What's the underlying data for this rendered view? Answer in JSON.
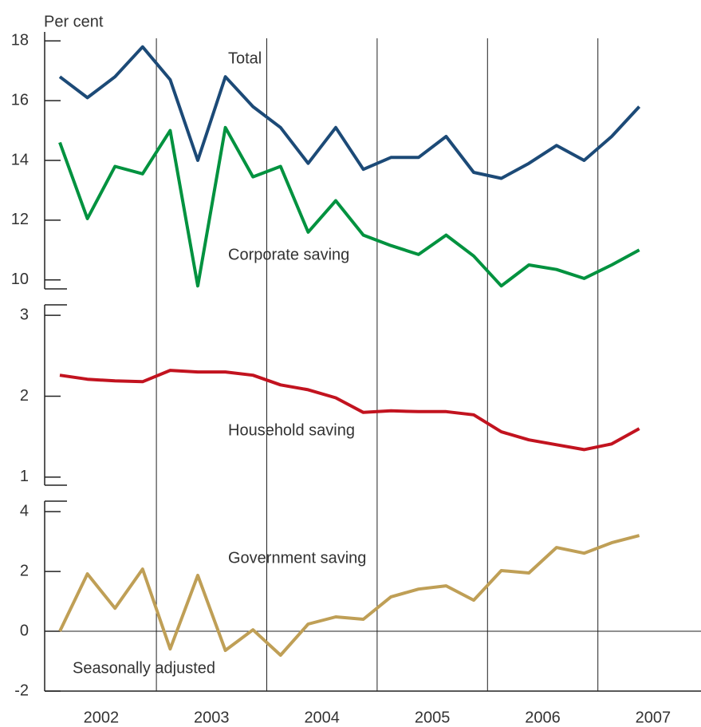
{
  "chart_data": [
    {
      "type": "line",
      "ylabel": "Per cent",
      "ylim": [
        9.7,
        18.3
      ],
      "yticks": [
        10,
        12,
        14,
        16,
        18
      ],
      "series": [
        {
          "name": "Total",
          "color": "#1c4a77",
          "values": [
            16.8,
            16.1,
            16.8,
            17.8,
            16.7,
            14.0,
            16.8,
            15.8,
            15.1,
            13.9,
            15.1,
            13.7,
            14.1,
            14.1,
            14.8,
            13.6,
            13.4,
            13.9,
            14.5,
            14.0,
            14.8,
            15.8
          ]
        },
        {
          "name": "Corporate saving",
          "color": "#00923f",
          "values": [
            14.6,
            12.05,
            13.8,
            13.55,
            15.0,
            9.8,
            15.1,
            13.45,
            13.8,
            11.6,
            12.65,
            11.5,
            11.15,
            10.85,
            11.5,
            10.8,
            9.8,
            10.5,
            10.35,
            10.05,
            10.5,
            11.0
          ]
        }
      ]
    },
    {
      "type": "line",
      "ylim": [
        0.9,
        3.13
      ],
      "yticks": [
        1,
        2,
        3
      ],
      "series": [
        {
          "name": "Household saving",
          "color": "#c2131f",
          "values": [
            2.26,
            2.21,
            2.19,
            2.18,
            2.32,
            2.3,
            2.3,
            2.26,
            2.14,
            2.08,
            1.98,
            1.8,
            1.82,
            1.81,
            1.81,
            1.77,
            1.56,
            1.46,
            1.4,
            1.34,
            1.41,
            1.6
          ]
        }
      ]
    },
    {
      "type": "line",
      "ylim": [
        -2,
        4.35
      ],
      "yticks": [
        -2,
        0,
        2,
        4
      ],
      "annotation": "Seasonally adjusted",
      "xlabels": [
        "2002",
        "2003",
        "2004",
        "2005",
        "2006",
        "2007"
      ],
      "series": [
        {
          "name": "Government saving",
          "color": "#bf9f56",
          "values": [
            0,
            1.92,
            0.77,
            2.08,
            -0.59,
            1.87,
            -0.64,
            0.05,
            -0.8,
            0.24,
            0.48,
            0.4,
            1.15,
            1.41,
            1.52,
            1.04,
            2.03,
            1.95,
            2.8,
            2.61,
            2.96,
            3.2
          ]
        }
      ]
    }
  ]
}
